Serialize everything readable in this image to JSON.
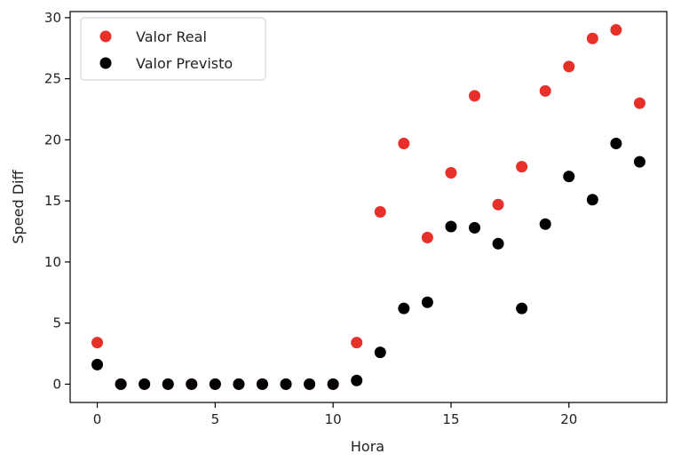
{
  "chart_data": {
    "type": "scatter",
    "title": "",
    "xlabel": "Hora",
    "ylabel": "Speed Diff",
    "xlim": [
      -1.15,
      24.15
    ],
    "ylim": [
      -1.5,
      30.5
    ],
    "xticks": [
      0,
      5,
      10,
      15,
      20
    ],
    "yticks": [
      0,
      5,
      10,
      15,
      20,
      25,
      30
    ],
    "grid": false,
    "legend_position": "top-left",
    "series": [
      {
        "name": "Valor Real",
        "color": "#e8302a",
        "x": [
          0,
          1,
          2,
          3,
          4,
          5,
          6,
          7,
          8,
          9,
          10,
          11,
          12,
          13,
          14,
          15,
          16,
          17,
          18,
          19,
          20,
          21,
          22,
          23
        ],
        "y": [
          3.4,
          0,
          0,
          0,
          0,
          0,
          0,
          0,
          0,
          0,
          0,
          3.4,
          14.1,
          19.7,
          12.0,
          17.3,
          23.6,
          14.7,
          17.8,
          24.0,
          26.0,
          28.3,
          29.0,
          23.0
        ]
      },
      {
        "name": "Valor Previsto",
        "color": "#000000",
        "x": [
          0,
          1,
          2,
          3,
          4,
          5,
          6,
          7,
          8,
          9,
          10,
          11,
          12,
          13,
          14,
          15,
          16,
          17,
          18,
          19,
          20,
          21,
          22,
          23
        ],
        "y": [
          1.6,
          0,
          0,
          0,
          0,
          0,
          0,
          0,
          0,
          0,
          0,
          0.3,
          2.6,
          6.2,
          6.7,
          12.9,
          12.8,
          11.5,
          6.2,
          13.1,
          17.0,
          15.1,
          19.7,
          18.2
        ]
      }
    ]
  }
}
